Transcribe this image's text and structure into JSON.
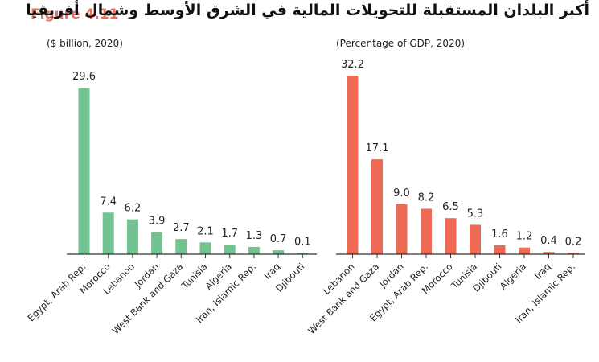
{
  "figure_label": "Figure 4.11",
  "figure_title": "أكبر البلدان المستقبلة للتحويلات المالية في الشرق الأوسط وشمال أفريقيا",
  "colors": {
    "left_bar": "#72c391",
    "right_bar": "#ed6a55",
    "figure_label": "#e8735a"
  },
  "chart_data": [
    {
      "type": "bar",
      "unit_label": "($ billion, 2020)",
      "color": "#72c391",
      "categories": [
        "Egypt, Arab Rep.",
        "Morocco",
        "Lebanon",
        "Jordan",
        "West Bank and Gaza",
        "Tunisia",
        "Algeria",
        "Iran, Islamic Rep.",
        "Iraq",
        "Djibouti"
      ],
      "values": [
        29.6,
        7.4,
        6.2,
        3.9,
        2.7,
        2.1,
        1.7,
        1.3,
        0.7,
        0.1
      ],
      "value_labels": [
        "29.6",
        "7.4",
        "6.2",
        "3.9",
        "2.7",
        "2.1",
        "1.7",
        "1.3",
        "0.7",
        "0.1"
      ],
      "ylim": [
        0,
        29.6
      ],
      "grid": false
    },
    {
      "type": "bar",
      "unit_label": "(Percentage of GDP, 2020)",
      "color": "#ed6a55",
      "categories": [
        "Lebanon",
        "West Bank and Gaza",
        "Jordan",
        "Egypt, Arab Rep.",
        "Morocco",
        "Tunisia",
        "Djibouti",
        "Algeria",
        "Iraq",
        "Iran, Islamic Rep."
      ],
      "values": [
        32.2,
        17.1,
        9.0,
        8.2,
        6.5,
        5.3,
        1.6,
        1.2,
        0.4,
        0.2
      ],
      "value_labels": [
        "32.2",
        "17.1",
        "9.0",
        "8.2",
        "6.5",
        "5.3",
        "1.6",
        "1.2",
        "0.4",
        "0.2"
      ],
      "ylim": [
        0,
        32.2
      ],
      "grid": false
    }
  ]
}
